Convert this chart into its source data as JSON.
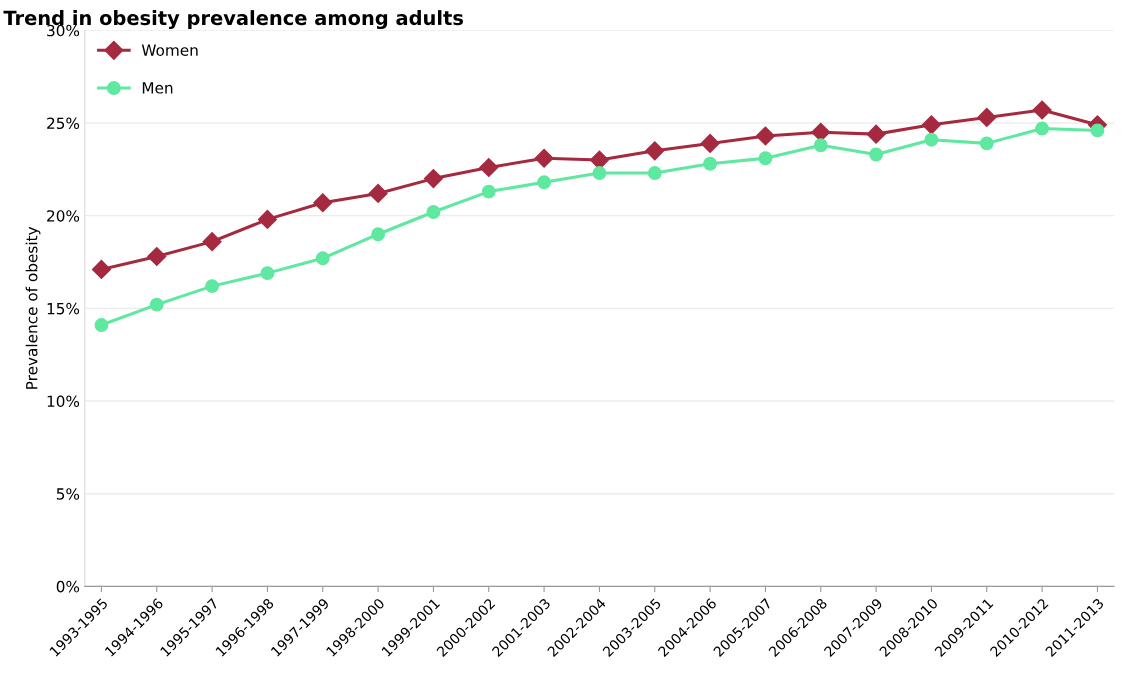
{
  "chart_data": {
    "type": "line",
    "title": "Trend in obesity prevalence among adults",
    "ylabel": "Prevalence of obesity",
    "categories": [
      "1993-1995",
      "1994-1996",
      "1995-1997",
      "1996-1998",
      "1997-1999",
      "1998-2000",
      "1999-2001",
      "2000-2002",
      "2001-2003",
      "2002-2004",
      "2003-2005",
      "2004-2006",
      "2005-2007",
      "2006-2008",
      "2007-2009",
      "2008-2010",
      "2009-2011",
      "2010-2012",
      "2011-2013"
    ],
    "series": [
      {
        "name": "Women",
        "color": "#a52a3f",
        "marker": "diamond",
        "values": [
          17.1,
          17.8,
          18.6,
          19.8,
          20.7,
          21.2,
          22.0,
          22.6,
          23.1,
          23.0,
          23.5,
          23.9,
          24.3,
          24.5,
          24.4,
          24.9,
          25.3,
          25.7,
          24.9
        ]
      },
      {
        "name": "Men",
        "color": "#5ee8a0",
        "marker": "circle",
        "values": [
          14.1,
          15.2,
          16.2,
          16.9,
          17.7,
          19.0,
          20.2,
          21.3,
          21.8,
          22.3,
          22.3,
          22.8,
          23.1,
          23.8,
          23.3,
          24.1,
          23.9,
          24.7,
          24.6
        ]
      }
    ],
    "ylim": [
      0,
      30
    ],
    "yticks": [
      {
        "value": 0,
        "label": "0%"
      },
      {
        "value": 5,
        "label": "5%"
      },
      {
        "value": 10,
        "label": "10%"
      },
      {
        "value": 15,
        "label": "15%"
      },
      {
        "value": 20,
        "label": "20%"
      },
      {
        "value": 25,
        "label": "25%"
      },
      {
        "value": 30,
        "label": "30%"
      }
    ],
    "grid": "y",
    "legend": "top left",
    "line_style": "solid"
  }
}
